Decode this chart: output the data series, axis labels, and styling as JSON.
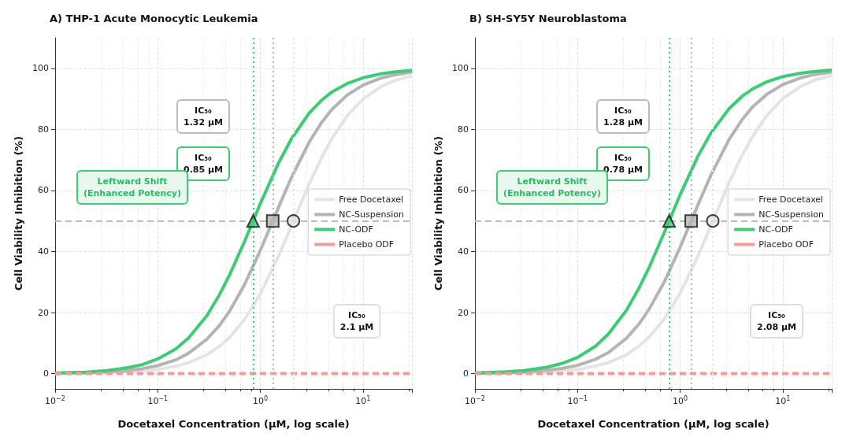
{
  "chart_data": [
    {
      "type": "line",
      "title": "A) THP-1 Acute Monocytic Leukemia",
      "xlabel": "Docetaxel Concentration (μM, log scale)",
      "ylabel": "Cell Viability Inhibition (%)",
      "log": "x",
      "grid": true,
      "legend": "right",
      "marker": "none",
      "xlim": [
        0.01,
        30
      ],
      "xticks": [
        {
          "value": 0.01,
          "label": "10$^{−2}$"
        },
        {
          "value": 0.1,
          "label": "10$^{−1}$"
        },
        {
          "value": 1,
          "label": "10$^{0}$"
        },
        {
          "value": 10,
          "label": "10$^{1}$"
        }
      ],
      "ylim": [
        -5,
        110
      ],
      "yticks": [
        0,
        20,
        40,
        60,
        80,
        100
      ],
      "x": [
        0.01,
        0.02,
        0.03,
        0.05,
        0.07,
        0.1,
        0.15,
        0.2,
        0.3,
        0.4,
        0.5,
        0.7,
        1,
        1.5,
        2,
        3,
        4,
        5,
        7,
        10,
        15,
        20,
        30
      ],
      "series": [
        {
          "name": "Free Docetaxel",
          "color": "#e4e4e4",
          "values": [
            0.1,
            0.1,
            0.3,
            0.5,
            0.8,
            1.4,
            2.4,
            3.6,
            6.2,
            8.9,
            11.8,
            17.7,
            26.1,
            38.4,
            48.3,
            62.2,
            71.1,
            77.1,
            84.4,
            89.9,
            94.0,
            95.9,
            97.6
          ]
        },
        {
          "name": "NC-Suspension",
          "color": "#b4b4b4",
          "values": [
            0.1,
            0.3,
            0.5,
            1.0,
            1.6,
            2.6,
            4.5,
            6.7,
            11.2,
            15.8,
            20.4,
            29.1,
            40.4,
            54.4,
            64.1,
            75.9,
            82.5,
            86.6,
            91.2,
            94.5,
            96.8,
            97.8,
            98.8
          ]
        },
        {
          "name": "NC-ODF",
          "color": "#3dcc75",
          "values": [
            0.2,
            0.5,
            0.9,
            1.9,
            2.9,
            4.8,
            8.1,
            11.7,
            18.9,
            25.9,
            32.3,
            43.2,
            55.7,
            68.9,
            76.8,
            85.4,
            89.7,
            92.3,
            95.0,
            96.9,
            98.2,
            98.8,
            99.3
          ]
        },
        {
          "name": "Placebo ODF",
          "color": "#f59a96",
          "line_style": "dashed",
          "x": [
            0.01,
            30
          ],
          "values": [
            0,
            0
          ]
        },
        {
          "type": "scatter",
          "marker": "circle",
          "color": "#e4e4e4",
          "x": [
            2.1
          ],
          "values": [
            50
          ]
        },
        {
          "type": "scatter",
          "marker": "square",
          "color": "#b4b4b4",
          "x": [
            1.32
          ],
          "values": [
            50
          ]
        },
        {
          "type": "scatter",
          "marker": "triangle",
          "color": "#3dcc75",
          "x": [
            0.85
          ],
          "values": [
            50
          ]
        }
      ],
      "ref_lines": [
        {
          "axis": "y",
          "value": 50,
          "color": "#bbbbbb",
          "line_style": "dashed"
        },
        {
          "axis": "x",
          "value": 0.85,
          "color": "#3dcc75",
          "line_style": "dotted"
        },
        {
          "axis": "x",
          "value": 1.32,
          "color": "#b4b4b4",
          "line_style": "dotted"
        },
        {
          "axis": "x",
          "value": 2.1,
          "color": "#e4e4e4",
          "line_style": "dotted"
        }
      ],
      "annotations": [
        "IC₅₀\n1.32 μM",
        "IC₅₀\n2.1 μM",
        "IC₅₀\n0.85 μM",
        "Leftward Shift\n(Enhanced Potency)"
      ]
    },
    {
      "type": "line",
      "title": "B) SH-SY5Y Neuroblastoma",
      "xlabel": "Docetaxel Concentration (μM, log scale)",
      "ylabel": "Cell Viability Inhibition (%)",
      "log": "x",
      "grid": true,
      "legend": "right",
      "marker": "none",
      "xlim": [
        0.01,
        30
      ],
      "xticks": [
        {
          "value": 0.01,
          "label": "10$^{−2}$"
        },
        {
          "value": 0.1,
          "label": "10$^{−1}$"
        },
        {
          "value": 1,
          "label": "10$^{0}$"
        },
        {
          "value": 10,
          "label": "10$^{1}$"
        }
      ],
      "ylim": [
        -5,
        110
      ],
      "yticks": [
        0,
        20,
        40,
        60,
        80,
        100
      ],
      "x": [
        0.01,
        0.02,
        0.03,
        0.05,
        0.07,
        0.1,
        0.15,
        0.2,
        0.3,
        0.4,
        0.5,
        0.7,
        1,
        1.5,
        2,
        3,
        4,
        5,
        7,
        10,
        15,
        20,
        30
      ],
      "series": [
        {
          "name": "Free Docetaxel",
          "color": "#e4e4e4",
          "values": [
            0.1,
            0.1,
            0.3,
            0.5,
            0.9,
            1.4,
            2.5,
            3.6,
            6.2,
            9.1,
            12.0,
            17.9,
            26.4,
            38.7,
            48.6,
            62.6,
            71.4,
            77.3,
            84.6,
            90.1,
            94.1,
            96.0,
            97.7
          ]
        },
        {
          "name": "NC-Suspension",
          "color": "#b4b4b4",
          "values": [
            0.1,
            0.3,
            0.5,
            1.1,
            1.7,
            2.7,
            4.7,
            6.9,
            11.6,
            16.4,
            21.2,
            30.0,
            41.4,
            55.5,
            65.1,
            76.7,
            83.1,
            87.1,
            91.5,
            94.7,
            96.9,
            97.9,
            98.8
          ]
        },
        {
          "name": "NC-ODF",
          "color": "#3dcc75",
          "values": [
            0.2,
            0.6,
            1.0,
            2.1,
            3.3,
            5.3,
            9.0,
            13.0,
            20.8,
            28.2,
            34.9,
            46.2,
            58.6,
            71.4,
            78.9,
            86.8,
            90.8,
            93.1,
            95.6,
            97.3,
            98.4,
            98.9,
            99.4
          ]
        },
        {
          "name": "Placebo ODF",
          "color": "#f59a96",
          "line_style": "dashed",
          "x": [
            0.01,
            30
          ],
          "values": [
            0,
            0
          ]
        },
        {
          "type": "scatter",
          "marker": "circle",
          "color": "#e4e4e4",
          "x": [
            2.08
          ],
          "values": [
            50
          ]
        },
        {
          "type": "scatter",
          "marker": "square",
          "color": "#b4b4b4",
          "x": [
            1.28
          ],
          "values": [
            50
          ]
        },
        {
          "type": "scatter",
          "marker": "triangle",
          "color": "#3dcc75",
          "x": [
            0.78
          ],
          "values": [
            50
          ]
        }
      ],
      "ref_lines": [
        {
          "axis": "y",
          "value": 50,
          "color": "#bbbbbb",
          "line_style": "dashed"
        },
        {
          "axis": "x",
          "value": 0.78,
          "color": "#3dcc75",
          "line_style": "dotted"
        },
        {
          "axis": "x",
          "value": 1.28,
          "color": "#b4b4b4",
          "line_style": "dotted"
        },
        {
          "axis": "x",
          "value": 2.08,
          "color": "#e4e4e4",
          "line_style": "dotted"
        }
      ],
      "annotations": [
        "IC₅₀\n1.28 μM",
        "IC₅₀\n2.08 μM",
        "IC₅₀\n0.78 μM",
        "Leftward Shift\n(Enhanced Potency)"
      ]
    }
  ]
}
